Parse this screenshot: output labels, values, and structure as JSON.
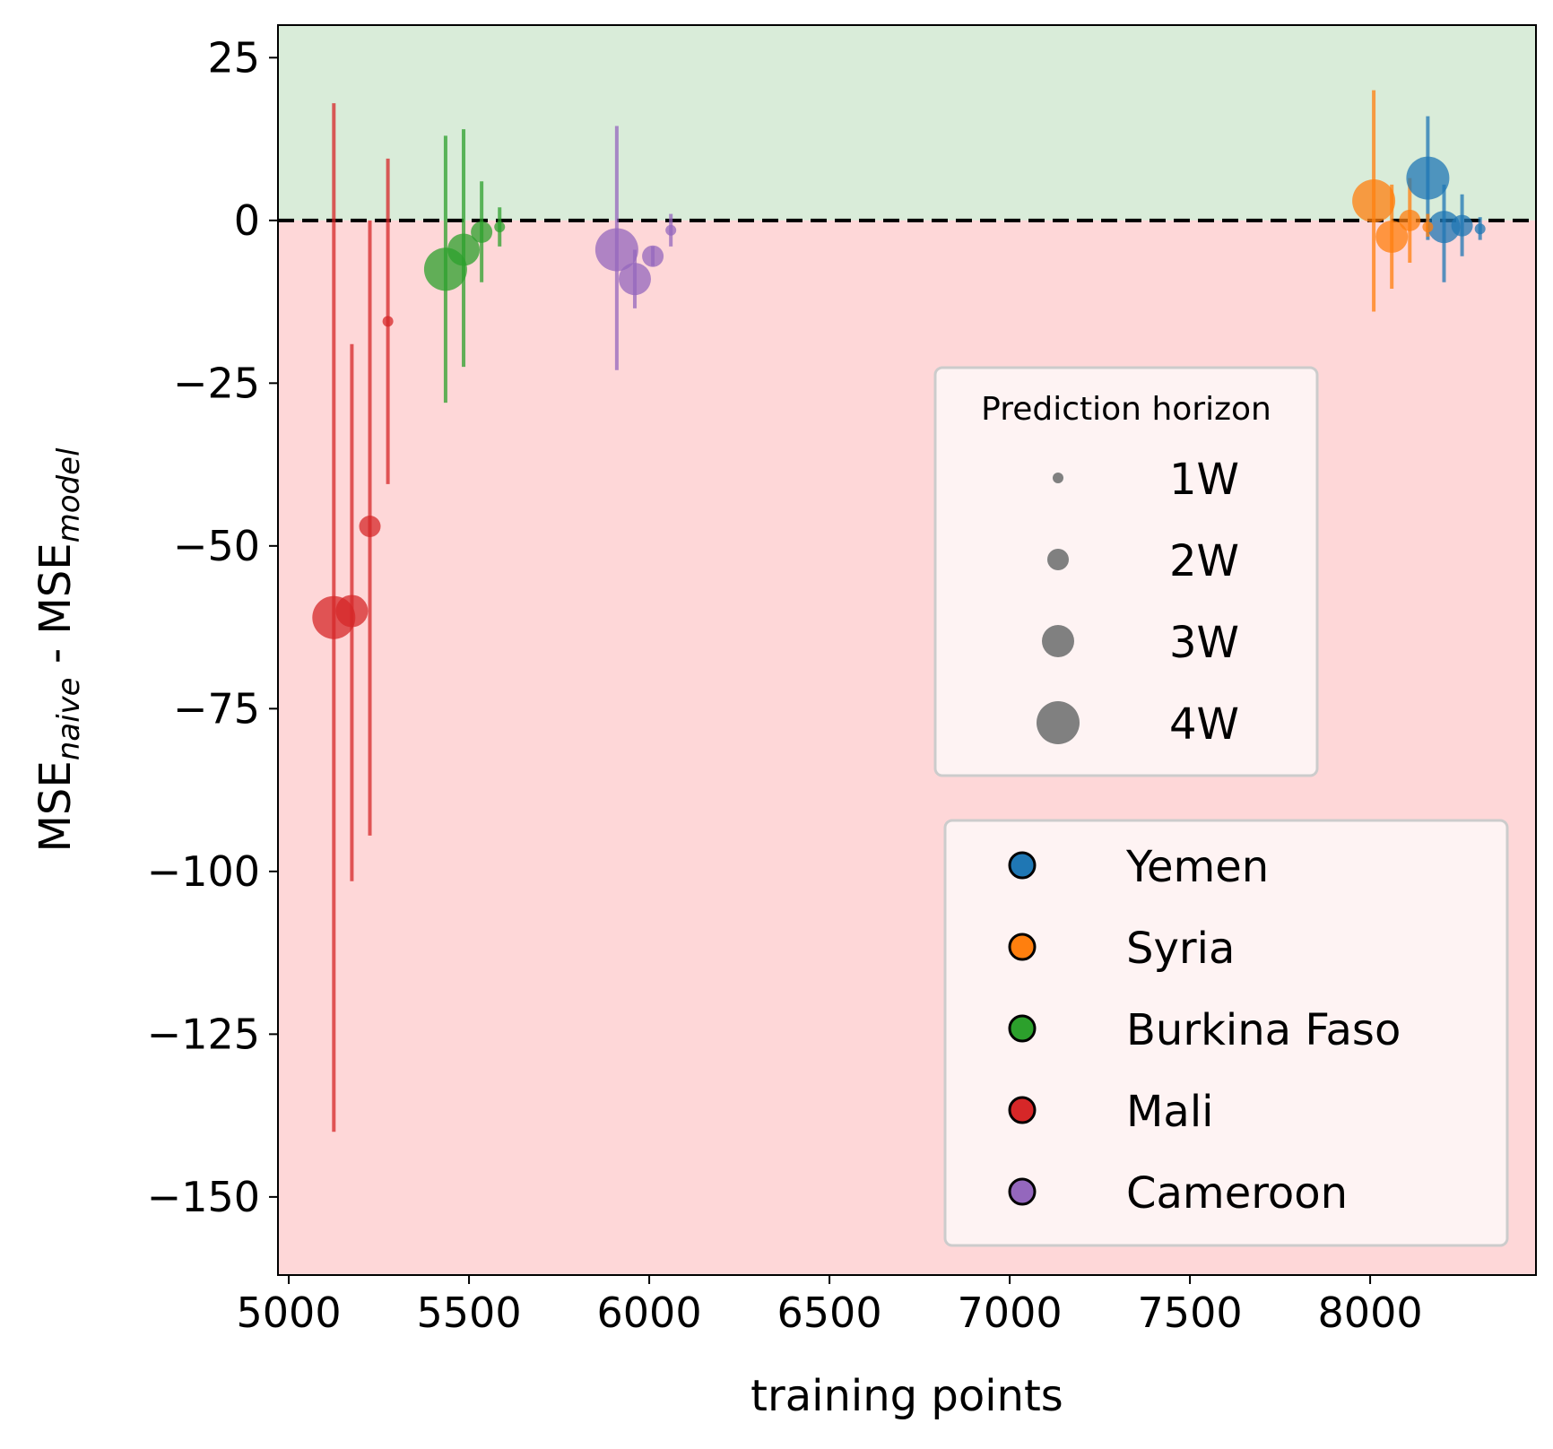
{
  "chart_data": {
    "type": "scatter",
    "xlabel": "training points",
    "ylabel": {
      "prefix": "MSE",
      "sub1": "naive",
      "middle": " - MSE",
      "sub2": "model"
    },
    "xlim": [
      4970,
      8460
    ],
    "ylim": [
      -162,
      30
    ],
    "xticks": [
      5000,
      5500,
      6000,
      6500,
      7000,
      7500,
      8000
    ],
    "xtick_labels": [
      "5000",
      "5500",
      "6000",
      "6500",
      "7000",
      "7500",
      "8000"
    ],
    "yticks": [
      25,
      0,
      -25,
      -50,
      -75,
      -100,
      -125,
      -150
    ],
    "ytick_labels": [
      "25",
      "0",
      "−25",
      "−50",
      "−75",
      "−100",
      "−125",
      "−150"
    ],
    "reference_line": {
      "y": 0,
      "style": "dashed",
      "color": "#000000"
    },
    "regions": [
      {
        "from": 0,
        "to": 30,
        "color": "#d9ecd9"
      },
      {
        "from": -162,
        "to": 0,
        "color": "#fed7d8"
      }
    ],
    "size_legend": {
      "title": "Prediction horizon",
      "entries": [
        {
          "label": "1W",
          "horizon": 1
        },
        {
          "label": "2W",
          "horizon": 2
        },
        {
          "label": "3W",
          "horizon": 3
        },
        {
          "label": "4W",
          "horizon": 4
        }
      ]
    },
    "series": [
      {
        "name": "Yemen",
        "color": "#1f77b4",
        "points": [
          {
            "horizon": 4,
            "x": 8160,
            "y": 6.5,
            "err_low": -3.0,
            "err_high": 16.0
          },
          {
            "horizon": 3,
            "x": 8205,
            "y": -1.0,
            "err_low": -9.5,
            "err_high": 5.5
          },
          {
            "horizon": 2,
            "x": 8255,
            "y": -0.8,
            "err_low": -5.5,
            "err_high": 4.0
          },
          {
            "horizon": 1,
            "x": 8305,
            "y": -1.3,
            "err_low": -3.0,
            "err_high": 0.5
          }
        ]
      },
      {
        "name": "Syria",
        "color": "#ff7f0e",
        "points": [
          {
            "horizon": 4,
            "x": 8010,
            "y": 3.0,
            "err_low": -14.0,
            "err_high": 20.0
          },
          {
            "horizon": 3,
            "x": 8060,
            "y": -2.5,
            "err_low": -10.5,
            "err_high": 5.5
          },
          {
            "horizon": 2,
            "x": 8110,
            "y": 0.0,
            "err_low": -6.5,
            "err_high": 6.5
          },
          {
            "horizon": 1,
            "x": 8160,
            "y": -1.0,
            "err_low": -2.5,
            "err_high": 1.0
          }
        ]
      },
      {
        "name": "Burkina Faso",
        "color": "#2ca02c",
        "points": [
          {
            "horizon": 4,
            "x": 5435,
            "y": -7.5,
            "err_low": -28.0,
            "err_high": 13.0
          },
          {
            "horizon": 3,
            "x": 5485,
            "y": -4.5,
            "err_low": -22.5,
            "err_high": 14.0
          },
          {
            "horizon": 2,
            "x": 5535,
            "y": -1.8,
            "err_low": -9.5,
            "err_high": 6.0
          },
          {
            "horizon": 1,
            "x": 5585,
            "y": -1.0,
            "err_low": -4.0,
            "err_high": 2.0
          }
        ]
      },
      {
        "name": "Mali",
        "color": "#d62728",
        "points": [
          {
            "horizon": 4,
            "x": 5125,
            "y": -61.0,
            "err_low": -140.0,
            "err_high": 18.0
          },
          {
            "horizon": 3,
            "x": 5175,
            "y": -60.0,
            "err_low": -101.5,
            "err_high": -19.0
          },
          {
            "horizon": 2,
            "x": 5225,
            "y": -47.0,
            "err_low": -94.5,
            "err_high": 0.0
          },
          {
            "horizon": 1,
            "x": 5275,
            "y": -15.5,
            "err_low": -40.5,
            "err_high": 9.5
          }
        ]
      },
      {
        "name": "Cameroon",
        "color": "#9467bd",
        "points": [
          {
            "horizon": 4,
            "x": 5910,
            "y": -4.5,
            "err_low": -23.0,
            "err_high": 14.5
          },
          {
            "horizon": 3,
            "x": 5960,
            "y": -9.0,
            "err_low": -13.5,
            "err_high": -4.5
          },
          {
            "horizon": 2,
            "x": 6010,
            "y": -5.5,
            "err_low": -7.0,
            "err_high": -4.0
          },
          {
            "horizon": 1,
            "x": 6060,
            "y": -1.5,
            "err_low": -4.0,
            "err_high": 1.0
          }
        ]
      }
    ],
    "legend_placement": "lower-right",
    "grid": false
  }
}
